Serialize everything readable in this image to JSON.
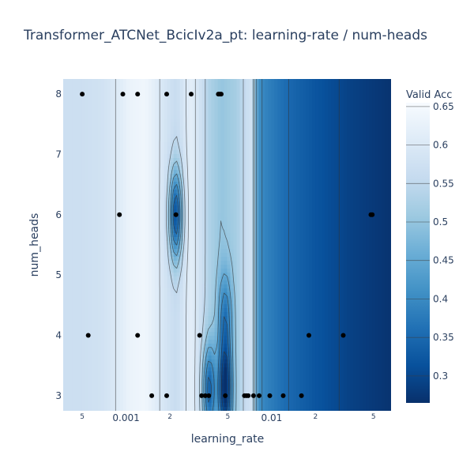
{
  "chart_data": {
    "type": "heatmap",
    "subtype": "contour",
    "title": "Transformer_ATCNet_BcicIv2a_pt: learning-rate / num-heads",
    "xlabel": "learning_rate",
    "ylabel": "num_heads",
    "x_scale": "log",
    "xlim": [
      0.00037,
      0.066
    ],
    "ylim": [
      2.75,
      8.25
    ],
    "x_ticks": [
      {
        "value": 0.0005,
        "label": "5"
      },
      {
        "value": 0.001,
        "label": "0.001"
      },
      {
        "value": 0.002,
        "label": "2"
      },
      {
        "value": 0.005,
        "label": "5"
      },
      {
        "value": 0.01,
        "label": "0.01"
      },
      {
        "value": 0.02,
        "label": "2"
      },
      {
        "value": 0.05,
        "label": "5"
      }
    ],
    "y_ticks": [
      3,
      4,
      5,
      6,
      7,
      8
    ],
    "colorbar": {
      "title": "Valid Acc",
      "range": [
        0.265,
        0.655
      ],
      "ticks": [
        0.3,
        0.35,
        0.4,
        0.45,
        0.5,
        0.55,
        0.6,
        0.65
      ],
      "tick_labels": [
        "0.3",
        "0.35",
        "0.4",
        "0.45",
        "0.5",
        "0.55",
        "0.6",
        "0.65"
      ],
      "colorscale": [
        [
          0.0,
          "#08306b"
        ],
        [
          0.125,
          "#08519c"
        ],
        [
          0.25,
          "#2171b5"
        ],
        [
          0.375,
          "#4292c6"
        ],
        [
          0.5,
          "#6baed6"
        ],
        [
          0.625,
          "#9ecae1"
        ],
        [
          0.75,
          "#c6dbef"
        ],
        [
          0.875,
          "#deebf7"
        ],
        [
          1.0,
          "#f7fbff"
        ]
      ]
    },
    "columns": [
      {
        "lr": 0.00037,
        "acc": 0.57
      },
      {
        "lr": 0.0005,
        "acc": 0.57
      },
      {
        "lr": 0.0007,
        "acc": 0.58
      },
      {
        "lr": 0.00085,
        "acc": 0.6
      },
      {
        "lr": 0.00105,
        "acc": 0.63
      },
      {
        "lr": 0.00135,
        "acc": 0.64
      },
      {
        "lr": 0.0017,
        "acc": 0.6
      },
      {
        "lr": 0.0022,
        "acc": 0.56
      },
      {
        "lr": 0.0028,
        "acc": 0.62
      },
      {
        "lr": 0.0033,
        "acc": 0.57
      },
      {
        "lr": 0.0037,
        "acc": 0.53
      },
      {
        "lr": 0.0045,
        "acc": 0.5
      },
      {
        "lr": 0.0058,
        "acc": 0.52
      },
      {
        "lr": 0.0068,
        "acc": 0.57
      },
      {
        "lr": 0.0076,
        "acc": 0.58
      },
      {
        "lr": 0.0078,
        "acc": 0.42
      },
      {
        "lr": 0.009,
        "acc": 0.39
      },
      {
        "lr": 0.013,
        "acc": 0.35
      },
      {
        "lr": 0.02,
        "acc": 0.32
      },
      {
        "lr": 0.035,
        "acc": 0.29
      },
      {
        "lr": 0.066,
        "acc": 0.27
      }
    ],
    "dips": [
      {
        "lr": 0.0022,
        "heads": 6.0,
        "depth": 0.26
      },
      {
        "lr": 0.0048,
        "heads": 3.1,
        "depth": 0.27
      },
      {
        "lr": 0.0037,
        "heads": 3.1,
        "depth": 0.2
      },
      {
        "lr": 0.0048,
        "heads": 4.3,
        "depth": 0.14
      }
    ],
    "points": [
      {
        "x": 0.0005,
        "y": 8
      },
      {
        "x": 0.00095,
        "y": 8
      },
      {
        "x": 0.0012,
        "y": 8
      },
      {
        "x": 0.0019,
        "y": 8
      },
      {
        "x": 0.0028,
        "y": 8
      },
      {
        "x": 0.0043,
        "y": 8
      },
      {
        "x": 0.0044,
        "y": 8
      },
      {
        "x": 0.0045,
        "y": 8
      },
      {
        "x": 0.0009,
        "y": 6
      },
      {
        "x": 0.0022,
        "y": 6
      },
      {
        "x": 0.048,
        "y": 6
      },
      {
        "x": 0.049,
        "y": 6
      },
      {
        "x": 0.00055,
        "y": 4
      },
      {
        "x": 0.0012,
        "y": 4
      },
      {
        "x": 0.0032,
        "y": 4
      },
      {
        "x": 0.018,
        "y": 4
      },
      {
        "x": 0.031,
        "y": 4
      },
      {
        "x": 0.0015,
        "y": 3
      },
      {
        "x": 0.0019,
        "y": 3
      },
      {
        "x": 0.0033,
        "y": 3
      },
      {
        "x": 0.0035,
        "y": 3
      },
      {
        "x": 0.0037,
        "y": 3
      },
      {
        "x": 0.0048,
        "y": 3
      },
      {
        "x": 0.0065,
        "y": 3
      },
      {
        "x": 0.0067,
        "y": 3
      },
      {
        "x": 0.0069,
        "y": 3
      },
      {
        "x": 0.0075,
        "y": 3
      },
      {
        "x": 0.0082,
        "y": 3
      },
      {
        "x": 0.0097,
        "y": 3
      },
      {
        "x": 0.012,
        "y": 3
      },
      {
        "x": 0.016,
        "y": 3
      }
    ]
  }
}
